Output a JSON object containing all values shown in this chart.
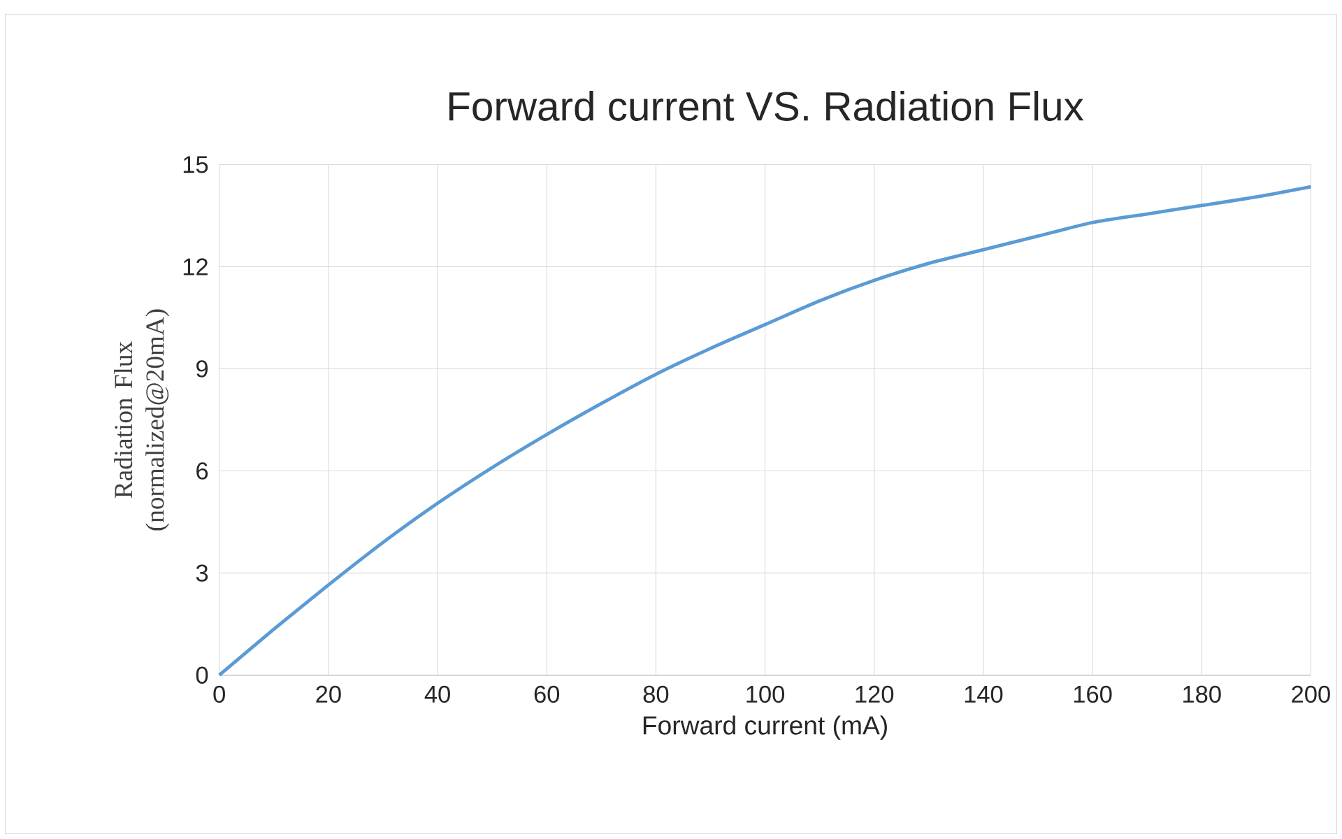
{
  "chart_data": {
    "type": "line",
    "title": "Forward current VS. Radiation Flux",
    "xlabel": "Forward current (mA)",
    "ylabel": "Radiation Flux (normalized@20mA)",
    "x": [
      0,
      10,
      20,
      30,
      40,
      50,
      60,
      70,
      80,
      90,
      100,
      110,
      120,
      130,
      140,
      150,
      160,
      170,
      180,
      190,
      200
    ],
    "series": [
      {
        "color": "#5b9bd5",
        "values": [
          0,
          1.35,
          2.65,
          3.9,
          5.05,
          6.1,
          7.07,
          7.98,
          8.84,
          9.6,
          10.3,
          11.0,
          11.6,
          12.1,
          12.5,
          12.9,
          13.3,
          13.55,
          13.8,
          14.05,
          14.35
        ]
      }
    ],
    "xlim": [
      0,
      200
    ],
    "xticks": [
      0,
      20,
      40,
      60,
      80,
      100,
      120,
      140,
      160,
      180,
      200
    ],
    "ylim": [
      0,
      15
    ],
    "yticks": [
      0,
      3,
      6,
      9,
      12,
      15
    ],
    "grid": true,
    "marker": "none",
    "line_style": "solid"
  }
}
